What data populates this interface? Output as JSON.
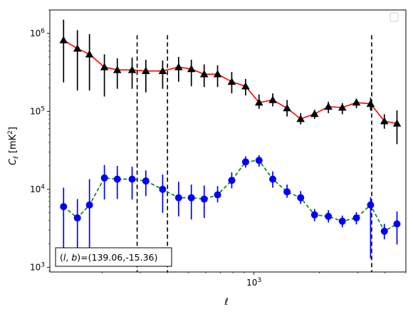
{
  "chart_data": {
    "type": "scatter",
    "x_scale": "log",
    "y_scale": "log",
    "xlim": [
      115,
      5000
    ],
    "ylim": [
      870,
      2000000
    ],
    "xlabel": "ℓ",
    "ylabel": "C_ℓ  [mK²]",
    "y_ticks": [
      {
        "value": 1000,
        "base": "10",
        "exp": "3"
      },
      {
        "value": 10000,
        "base": "10",
        "exp": "4"
      },
      {
        "value": 100000,
        "base": "10",
        "exp": "5"
      },
      {
        "value": 1000000,
        "base": "10",
        "exp": "6"
      }
    ],
    "x_ticks": [
      {
        "value": 1000,
        "base": "10",
        "exp": "3"
      }
    ],
    "legend": {
      "placement": "top-right",
      "entries": []
    },
    "vlines": [
      290,
      400,
      3480
    ],
    "annotation": "(l, b)=(139.06,-15.36)",
    "annotation_parts": {
      "lhs": "(l, b)",
      "rhs": "=(139.06,-15.36)"
    },
    "series": [
      {
        "style": "solid-line-triangle",
        "line_color": "#ff0000",
        "marker_color": "#000000",
        "error_color": "#000000",
        "x": [
          133,
          154,
          175,
          205,
          235,
          275,
          318,
          380,
          450,
          515,
          590,
          680,
          790,
          915,
          1055,
          1220,
          1420,
          1640,
          1900,
          2200,
          2550,
          2960,
          3440,
          3980,
          4550
        ],
        "y": [
          820000,
          640000,
          540000,
          370000,
          340000,
          340000,
          330000,
          330000,
          370000,
          350000,
          300000,
          300000,
          240000,
          210000,
          130000,
          140000,
          110000,
          80000,
          93000,
          115000,
          112000,
          130000,
          125000,
          75000,
          70000
        ],
        "err_low": [
          235000,
          185000,
          185000,
          155000,
          195000,
          195000,
          175000,
          195000,
          240000,
          210000,
          205000,
          205000,
          170000,
          160000,
          108000,
          116000,
          86000,
          68000,
          80000,
          95000,
          92000,
          110000,
          102000,
          60000,
          38000
        ],
        "err_high": [
          1500000,
          1100000,
          980000,
          540000,
          480000,
          490000,
          460000,
          450000,
          500000,
          460000,
          400000,
          390000,
          320000,
          260000,
          165000,
          170000,
          140000,
          95000,
          105000,
          133000,
          128000,
          145000,
          150000,
          92000,
          103000
        ]
      },
      {
        "style": "dashed-line-circle",
        "line_color": "#008000",
        "marker_color": "#0000ff",
        "error_color": "#0000ff",
        "x": [
          133,
          154,
          175,
          205,
          235,
          275,
          318,
          380,
          450,
          515,
          590,
          680,
          790,
          915,
          1055,
          1220,
          1420,
          1640,
          1900,
          2200,
          2550,
          2960,
          3440,
          3980,
          4550
        ],
        "y": [
          6000,
          4300,
          6300,
          14000,
          13500,
          13500,
          12800,
          10000,
          7800,
          7800,
          7500,
          8500,
          13000,
          22500,
          23500,
          13500,
          9300,
          7800,
          4700,
          4500,
          3900,
          4300,
          6300,
          2900,
          3600
        ],
        "err_low": [
          1620,
          1320,
          1620,
          7400,
          7500,
          7400,
          8200,
          5000,
          4500,
          4100,
          4300,
          6800,
          10300,
          19000,
          19500,
          10500,
          7800,
          6500,
          3900,
          3750,
          3250,
          3550,
          1300,
          2280,
          1960
        ],
        "err_high": [
          10500,
          7500,
          13500,
          20500,
          20000,
          19500,
          17500,
          15500,
          12500,
          11500,
          11200,
          11000,
          16500,
          26500,
          27500,
          17000,
          11500,
          9500,
          5600,
          5400,
          4600,
          5100,
          7900,
          3600,
          5200
        ]
      }
    ]
  }
}
